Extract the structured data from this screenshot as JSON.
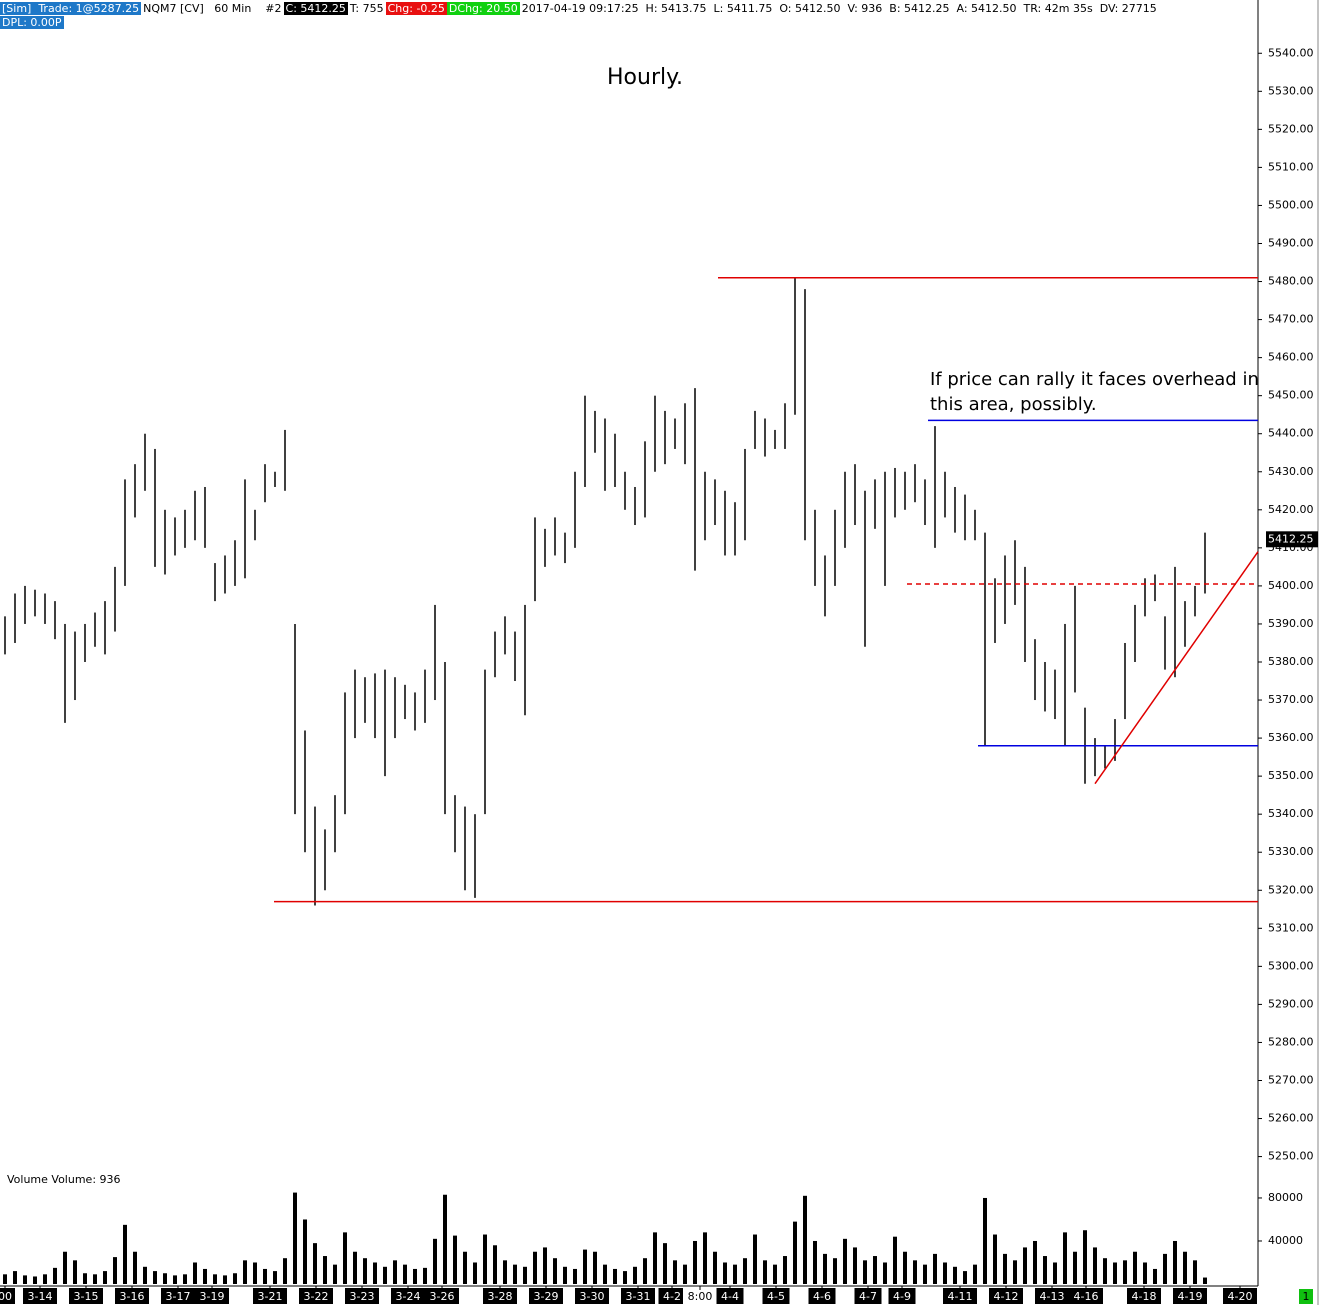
{
  "header": {
    "segments": [
      {
        "text": "[Sim]  Trade: 1@5287.25",
        "bg": "#1e78c8",
        "fg": "#ffffff"
      },
      {
        "text": "NQM7 [CV]   60 Min    #2",
        "bg": "#ffffff",
        "fg": "#000000"
      },
      {
        "text": "C: 5412.25",
        "bg": "#000000",
        "fg": "#ffffff"
      },
      {
        "text": "T: 755",
        "bg": "#ffffff",
        "fg": "#000000"
      },
      {
        "text": "Chg: -0.25",
        "bg": "#e81010",
        "fg": "#ffffff"
      },
      {
        "text": "DChg: 20.50",
        "bg": "#10d010",
        "fg": "#ffffff"
      },
      {
        "text": "2017-04-19 09:17:25  H: 5413.75  L: 5411.75  O: 5412.50  V: 936  B: 5412.25  A: 5412.50  TR: 42m 35s  DV: 27715",
        "bg": "#ffffff",
        "fg": "#000000"
      }
    ],
    "second": {
      "text": "DPL: 0.00P",
      "bg": "#1e78c8",
      "fg": "#ffffff"
    }
  },
  "chart_data": {
    "type": "ohlc",
    "title": "Hourly.",
    "annotation": [
      "If price can rally it faces overhead in",
      "this area, possibly."
    ],
    "xlim": [
      0,
      125.8
    ],
    "ylim": [
      5247,
      5554
    ],
    "xticks": [
      {
        "value": 0.5,
        "label": "00"
      },
      {
        "value": 4.0,
        "label": "3-14"
      },
      {
        "value": 8.6,
        "label": "3-15"
      },
      {
        "value": 13.2,
        "label": "3-16"
      },
      {
        "value": 17.8,
        "label": "3-17"
      },
      {
        "value": 21.2,
        "label": "3-19"
      },
      {
        "value": 27.0,
        "label": "3-21"
      },
      {
        "value": 31.6,
        "label": "3-22"
      },
      {
        "value": 36.2,
        "label": "3-23"
      },
      {
        "value": 40.8,
        "label": "3-24"
      },
      {
        "value": 44.2,
        "label": "3-26"
      },
      {
        "value": 50.0,
        "label": "3-28"
      },
      {
        "value": 54.6,
        "label": "3-29"
      },
      {
        "value": 59.2,
        "label": "3-30"
      },
      {
        "value": 63.8,
        "label": "3-31"
      },
      {
        "value": 67.2,
        "label": "4-2"
      },
      {
        "value": 70.0,
        "label": "8:00"
      },
      {
        "value": 73.0,
        "label": "4-4"
      },
      {
        "value": 77.6,
        "label": "4-5"
      },
      {
        "value": 82.2,
        "label": "4-6"
      },
      {
        "value": 86.8,
        "label": "4-7"
      },
      {
        "value": 90.2,
        "label": "4-9"
      },
      {
        "value": 96.0,
        "label": "4-11"
      },
      {
        "value": 100.6,
        "label": "4-12"
      },
      {
        "value": 105.2,
        "label": "4-13"
      },
      {
        "value": 108.6,
        "label": "4-16"
      },
      {
        "value": 114.4,
        "label": "4-18"
      },
      {
        "value": 119.0,
        "label": "4-19"
      },
      {
        "value": 124.0,
        "label": "4-20"
      }
    ],
    "yticks": [
      {
        "value": 5540,
        "label": "5540.00"
      },
      {
        "value": 5530,
        "label": "5530.00"
      },
      {
        "value": 5520,
        "label": "5520.00"
      },
      {
        "value": 5510,
        "label": "5510.00"
      },
      {
        "value": 5500,
        "label": "5500.00"
      },
      {
        "value": 5490,
        "label": "5490.00"
      },
      {
        "value": 5480,
        "label": "5480.00"
      },
      {
        "value": 5470,
        "label": "5470.00"
      },
      {
        "value": 5460,
        "label": "5460.00"
      },
      {
        "value": 5450,
        "label": "5450.00"
      },
      {
        "value": 5440,
        "label": "5440.00"
      },
      {
        "value": 5430,
        "label": "5430.00"
      },
      {
        "value": 5420,
        "label": "5420.00"
      },
      {
        "value": 5410,
        "label": "5410.00"
      },
      {
        "value": 5400,
        "label": "5400.00"
      },
      {
        "value": 5390,
        "label": "5390.00"
      },
      {
        "value": 5380,
        "label": "5380.00"
      },
      {
        "value": 5370,
        "label": "5370.00"
      },
      {
        "value": 5360,
        "label": "5360.00"
      },
      {
        "value": 5350,
        "label": "5350.00"
      },
      {
        "value": 5340,
        "label": "5340.00"
      },
      {
        "value": 5330,
        "label": "5330.00"
      },
      {
        "value": 5320,
        "label": "5320.00"
      },
      {
        "value": 5310,
        "label": "5310.00"
      },
      {
        "value": 5300,
        "label": "5300.00"
      },
      {
        "value": 5290,
        "label": "5290.00"
      },
      {
        "value": 5280,
        "label": "5280.00"
      },
      {
        "value": 5270,
        "label": "5270.00"
      },
      {
        "value": 5260,
        "label": "5260.00"
      },
      {
        "value": 5250,
        "label": "5250.00"
      }
    ],
    "color": "#000000",
    "last_price": 5412.25,
    "high": [
      5392,
      5398,
      5400,
      5399,
      5398,
      5396,
      5390,
      5388,
      5390,
      5393,
      5396,
      5405,
      5428,
      5432,
      5440,
      5436,
      5420,
      5418,
      5420,
      5425,
      5426,
      5406,
      5408,
      5412,
      5428,
      5420,
      5432,
      5430,
      5441,
      5390,
      5362,
      5342,
      5336,
      5345,
      5372,
      5378,
      5376,
      5377,
      5378,
      5376,
      5374,
      5372,
      5378,
      5395,
      5380,
      5345,
      5342,
      5340,
      5378,
      5388,
      5392,
      5388,
      5395,
      5418,
      5415,
      5418,
      5414,
      5430,
      5450,
      5446,
      5444,
      5440,
      5430,
      5426,
      5438,
      5450,
      5446,
      5444,
      5448,
      5452,
      5430,
      5428,
      5425,
      5422,
      5436,
      5446,
      5444,
      5441,
      5448,
      5481,
      5478,
      5420,
      5408,
      5420,
      5430,
      5432,
      5425,
      5428,
      5430,
      5431,
      5430,
      5432,
      5428,
      5442,
      5430,
      5426,
      5424,
      5420,
      5414,
      5402,
      5408,
      5412,
      5405,
      5386,
      5380,
      5378,
      5390,
      5400,
      5368,
      5360,
      5358,
      5365,
      5385,
      5395,
      5402,
      5403,
      5392,
      5405,
      5396,
      5400,
      5414
    ],
    "low": [
      5382,
      5385,
      5390,
      5392,
      5390,
      5386,
      5364,
      5370,
      5380,
      5384,
      5382,
      5388,
      5400,
      5418,
      5425,
      5405,
      5403,
      5408,
      5410,
      5412,
      5410,
      5396,
      5398,
      5400,
      5402,
      5412,
      5422,
      5426,
      5425,
      5340,
      5330,
      5316,
      5320,
      5330,
      5340,
      5360,
      5364,
      5360,
      5350,
      5360,
      5365,
      5362,
      5364,
      5370,
      5340,
      5330,
      5320,
      5318,
      5340,
      5376,
      5382,
      5375,
      5366,
      5396,
      5405,
      5408,
      5406,
      5410,
      5426,
      5435,
      5425,
      5426,
      5420,
      5416,
      5418,
      5430,
      5432,
      5436,
      5432,
      5404,
      5412,
      5416,
      5408,
      5408,
      5412,
      5436,
      5434,
      5436,
      5436,
      5445,
      5412,
      5400,
      5392,
      5400,
      5410,
      5416,
      5384,
      5415,
      5400,
      5418,
      5420,
      5422,
      5416,
      5410,
      5418,
      5414,
      5412,
      5412,
      5358,
      5385,
      5390,
      5395,
      5380,
      5370,
      5367,
      5365,
      5358,
      5372,
      5348,
      5350,
      5352,
      5354,
      5365,
      5380,
      5392,
      5396,
      5378,
      5376,
      5384,
      5392,
      5398
    ],
    "levels": [
      {
        "value": 5481,
        "from": 71.8,
        "color": "#e00000",
        "dashed": false
      },
      {
        "value": 5317,
        "from": 27.4,
        "color": "#e00000",
        "dashed": false
      },
      {
        "value": 5443.5,
        "from": 92.8,
        "color": "#0000e0",
        "dashed": false
      },
      {
        "value": 5358,
        "from": 97.8,
        "color": "#0000e0",
        "dashed": false
      },
      {
        "value": 5400.5,
        "from": 90.7,
        "color": "#e00000",
        "dashed": true
      }
    ],
    "trendline": {
      "x": [
        109.5,
        125.8
      ],
      "y": [
        5348,
        5409
      ],
      "color": "#e00000"
    },
    "volume": {
      "label": "Volume  Volume: 936",
      "ylim": [
        0,
        106000
      ],
      "yticks": [
        80000,
        40000
      ],
      "values": [
        9000,
        12000,
        8000,
        7000,
        9000,
        15000,
        30000,
        22000,
        10000,
        9000,
        12000,
        25000,
        55000,
        30000,
        16000,
        12000,
        10000,
        8000,
        9000,
        20000,
        14000,
        9000,
        8000,
        10000,
        22000,
        20000,
        14000,
        12000,
        24000,
        85000,
        60000,
        38000,
        26000,
        18000,
        48000,
        30000,
        24000,
        20000,
        16000,
        22000,
        18000,
        14000,
        15000,
        42000,
        83000,
        45000,
        30000,
        20000,
        46000,
        36000,
        22000,
        18000,
        16000,
        30000,
        34000,
        24000,
        16000,
        14000,
        32000,
        30000,
        18000,
        14000,
        12000,
        16000,
        24000,
        48000,
        38000,
        22000,
        18000,
        40000,
        48000,
        30000,
        20000,
        18000,
        24000,
        46000,
        22000,
        18000,
        26000,
        58000,
        82000,
        40000,
        28000,
        24000,
        42000,
        34000,
        22000,
        26000,
        20000,
        44000,
        30000,
        22000,
        18000,
        28000,
        20000,
        16000,
        12000,
        18000,
        80000,
        46000,
        28000,
        22000,
        34000,
        40000,
        26000,
        20000,
        48000,
        30000,
        50000,
        34000,
        24000,
        20000,
        22000,
        30000,
        20000,
        14000,
        28000,
        40000,
        30000,
        22000,
        6000
      ]
    },
    "page_number": "1"
  }
}
